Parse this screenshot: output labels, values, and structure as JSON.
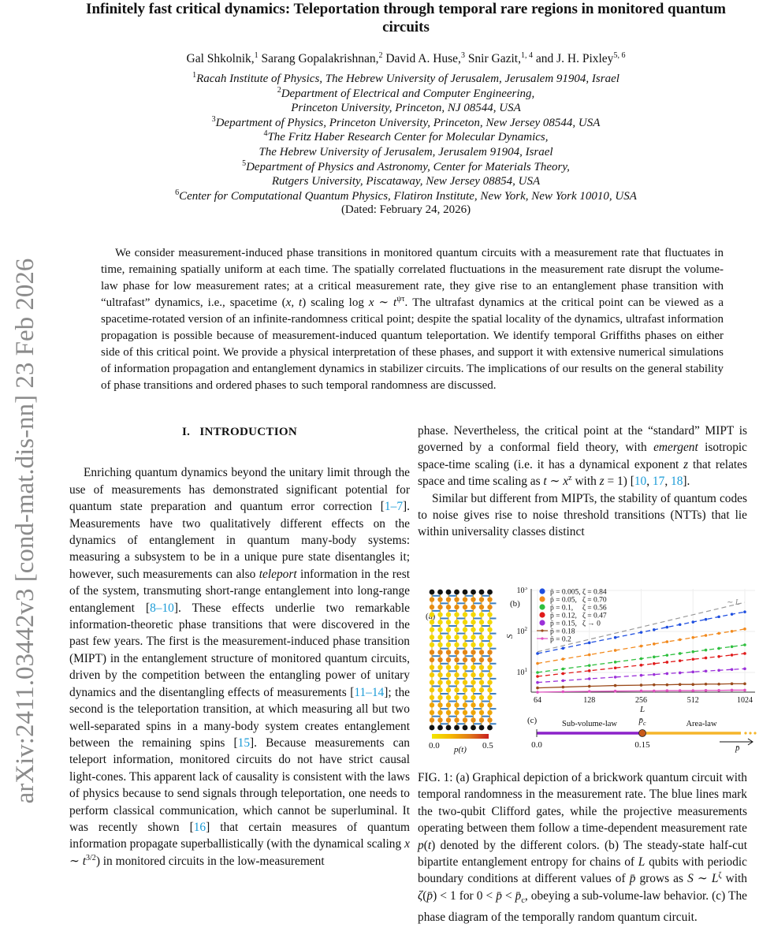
{
  "stamp": "arXiv:2411.03442v3  [cond-mat.dis-nn]  23 Feb 2026",
  "title": "Infinitely fast critical dynamics: Teleportation through temporal rare regions in monitored quantum circuits",
  "authors": [
    {
      "name": "Gal Shkolnik,",
      "sup": "1"
    },
    {
      "name": " Sarang Gopalakrishnan,",
      "sup": "2"
    },
    {
      "name": " David A. Huse,",
      "sup": "3"
    },
    {
      "name": " Snir Gazit,",
      "sup": "1, 4"
    },
    {
      "name": " and J. H. Pixley",
      "sup": "5, 6"
    }
  ],
  "affiliations": [
    {
      "sup": "1",
      "lines": [
        "Racah Institute of Physics, The Hebrew University of Jerusalem, Jerusalem 91904, Israel"
      ]
    },
    {
      "sup": "2",
      "lines": [
        "Department of Electrical and Computer Engineering,",
        "Princeton University, Princeton, NJ 08544, USA"
      ]
    },
    {
      "sup": "3",
      "lines": [
        "Department of Physics, Princeton University, Princeton, New Jersey 08544, USA"
      ]
    },
    {
      "sup": "4",
      "lines": [
        "The Fritz Haber Research Center for Molecular Dynamics,",
        "The Hebrew University of Jerusalem, Jerusalem 91904, Israel"
      ]
    },
    {
      "sup": "5",
      "lines": [
        "Department of Physics and Astronomy, Center for Materials Theory,",
        "Rutgers University, Piscataway, New Jersey 08854, USA"
      ]
    },
    {
      "sup": "6",
      "lines": [
        "Center for Computational Quantum Physics, Flatiron Institute, New York, New York 10010, USA"
      ]
    }
  ],
  "dated": "(Dated: February 24, 2026)",
  "abstract": [
    {
      "t": "We consider measurement-induced phase transitions in monitored quantum circuits with a measurement rate that fluctuates in time, remaining spatially uniform at each time. The spatially correlated fluctuations in the measurement rate disrupt the volume-law phase for low measurement rates; at a critical measurement rate, they give rise to an entanglement phase transition with “ultrafast” dynamics, i.e., spacetime ("
    },
    {
      "m": "x, t"
    },
    {
      "t": ") scaling log "
    },
    {
      "m": "x"
    },
    {
      "t": " ∼ "
    },
    {
      "m": "t"
    },
    {
      "sup": "ψτ"
    },
    {
      "t": ". The ultrafast dynamics at the critical point can be viewed as a spacetime-rotated version of an infinite-randomness critical point; despite the spatial locality of the dynamics, ultrafast information propagation is possible because of measurement-induced quantum teleportation. We identify temporal Griffiths phases on either side of this critical point. We provide a physical interpretation of these phases, and support it with extensive numerical simulations of information propagation and entanglement dynamics in stabilizer circuits. The implications of our results on the general stability of phase transitions and ordered phases to such temporal randomness are discussed."
    }
  ],
  "section_heading": "I.   INTRODUCTION",
  "left_paragraph": [
    {
      "t": "Enriching quantum dynamics beyond the unitary limit through the use of measurements has demonstrated significant potential for quantum state preparation and quantum error correction ["
    },
    {
      "c": "1–7"
    },
    {
      "t": "]. Measurements have two qualitatively different effects on the dynamics of entanglement in quantum many-body systems: measuring a subsystem to be in a unique pure state disentangles it; however, such measurements can also "
    },
    {
      "e": "teleport"
    },
    {
      "t": " information in the rest of the system, transmuting short-range entanglement into long-range entanglement ["
    },
    {
      "c": "8–10"
    },
    {
      "t": "]. These effects underlie two remarkable information-theoretic phase transitions that were discovered in the past few years. The first is the measurement-induced phase transition (MIPT) in the entanglement structure of monitored quantum circuits, driven by the competition between the entangling power of unitary dynamics and the disentangling effects of measurements ["
    },
    {
      "c": "11–14"
    },
    {
      "t": "]; the second is the teleportation transition, at which measuring all but two well-separated spins in a many-body system creates entanglement between the remaining spins ["
    },
    {
      "c": "15"
    },
    {
      "t": "]. Because measurements can teleport information, monitored circuits do not have strict causal light-cones. This apparent lack of causality is consistent with the laws of physics because to send signals through teleportation, one needs to perform classical communication, which cannot be superluminal. It was recently shown ["
    },
    {
      "c": "16"
    },
    {
      "t": "] that certain measures of quantum information propagate superballistically (with the dynamical scaling "
    },
    {
      "m": "x"
    },
    {
      "t": " ∼ "
    },
    {
      "m": "t"
    },
    {
      "sup": "3/2"
    },
    {
      "t": ") in monitored circuits in the low-measurement"
    }
  ],
  "right_paragraphs": [
    [
      {
        "t": "phase. Nevertheless, the critical point at the “standard” MIPT is governed by a conformal field theory, with "
      },
      {
        "e": "emergent"
      },
      {
        "t": " isotropic space-time scaling (i.e. it has a dynamical exponent "
      },
      {
        "m": "z"
      },
      {
        "t": " that relates space and time scaling as "
      },
      {
        "m": "t"
      },
      {
        "t": " ∼ "
      },
      {
        "m": "x"
      },
      {
        "sup": "z"
      },
      {
        "t": " with "
      },
      {
        "m": "z"
      },
      {
        "t": " = 1) ["
      },
      {
        "c": "10"
      },
      {
        "t": ", "
      },
      {
        "c": "17"
      },
      {
        "t": ", "
      },
      {
        "c": "18"
      },
      {
        "t": "]."
      }
    ],
    [
      {
        "t": "Similar but different from MIPTs, the stability of quantum codes to noise gives rise to noise threshold transitions (NTTs) that lie within universality classes distinct"
      }
    ]
  ],
  "caption": [
    {
      "t": "FIG. 1: (a) Graphical depiction of a brickwork quantum circuit with temporal randomness in the measurement rate. The blue lines mark the two-qubit Clifford gates, while the projective measurements operating between them follow a time-dependent measurement rate "
    },
    {
      "m": "p"
    },
    {
      "t": "("
    },
    {
      "m": "t"
    },
    {
      "t": ") denoted by the different colors. (b) The steady-state half-cut bipartite entanglement entropy for chains of "
    },
    {
      "m": "L"
    },
    {
      "t": " qubits with periodic boundary conditions at different values of "
    },
    {
      "m": "p̄"
    },
    {
      "t": " grows as "
    },
    {
      "m": "S"
    },
    {
      "t": " ∼ "
    },
    {
      "m": "L"
    },
    {
      "sup": "ζ"
    },
    {
      "t": " with "
    },
    {
      "m": "ζ"
    },
    {
      "t": "("
    },
    {
      "m": "p̄"
    },
    {
      "t": ") < 1 for 0 < "
    },
    {
      "m": "p̄"
    },
    {
      "t": " < "
    },
    {
      "m": "p̄"
    },
    {
      "sub": "c"
    },
    {
      "t": ", obeying a sub-volume-law behavior. (c) The phase diagram of the temporally random quantum circuit."
    }
  ],
  "colors": {
    "citation": "#1a9bd7",
    "gate": "#3a7fc4",
    "stamp": "#8a8a8a"
  },
  "chart_data": [
    {
      "type": "diagram",
      "panel_label": "(a)",
      "colorbar": {
        "min_label": "0.0",
        "max_label": "0.5",
        "label": "p(t)",
        "colors": [
          "#f2e600",
          "#f5b800",
          "#e07a1a",
          "#c81e1e"
        ]
      },
      "rows_p_t": [
        0,
        0.28,
        0.28,
        0.05,
        0.05,
        0.05,
        0.05,
        0.05,
        0.3,
        0.3,
        0.1,
        0.1,
        0.1,
        0.1,
        0.1,
        0.22,
        0.22,
        0.28,
        0
      ],
      "columns": 8
    },
    {
      "type": "line",
      "panel_label": "(b)",
      "xlabel": "L",
      "ylabel": "S",
      "xscale": "log2",
      "yscale": "log10",
      "xlim": [
        60,
        1100
      ],
      "ylim": [
        3.2,
        1000
      ],
      "xticks": [
        "64",
        "128",
        "256",
        "512",
        "1024"
      ],
      "yticks": [
        "10^1",
        "10^2",
        "10^3"
      ],
      "grid": true,
      "legend_position": "top-left",
      "x": [
        64,
        90,
        128,
        181,
        256,
        304,
        362,
        430,
        512,
        608,
        724,
        861,
        1024
      ],
      "series": [
        {
          "name": "p̄ = 0.005, ζ = 0.84",
          "color": "#1f4fe0",
          "style": "dashed",
          "values": [
            29,
            39,
            53,
            71,
            95,
            110,
            127,
            147,
            170,
            197,
            228,
            263,
            300
          ]
        },
        {
          "name": "p̄ = 0.05,   ζ = 0.70",
          "color": "#f28a1e",
          "style": "dashed",
          "values": [
            16.6,
            21.2,
            27,
            34.6,
            44,
            49.6,
            56,
            63,
            71,
            80,
            90,
            101,
            115
          ]
        },
        {
          "name": "p̄ = 0.1,     ζ = 0.56",
          "color": "#2fbf3f",
          "style": "dashed",
          "values": [
            10,
            12.2,
            14.8,
            17.9,
            21.7,
            23.9,
            26.3,
            29,
            32,
            35.2,
            38.7,
            42.6,
            47
          ]
        },
        {
          "name": "p̄ = 0.12,   ζ = 0.47",
          "color": "#e01b1b",
          "style": "dashed",
          "values": [
            8,
            9.4,
            11,
            12.9,
            15.1,
            16.4,
            17.8,
            19.3,
            21,
            22.6,
            24.5,
            26.6,
            29
          ]
        },
        {
          "name": "p̄ = 0.15,   ζ → 0",
          "color": "#9b30d9",
          "style": "dashed",
          "values": [
            5.7,
            6.3,
            7,
            7.7,
            8.5,
            8.9,
            9.4,
            9.8,
            10.3,
            10.8,
            11.3,
            11.8,
            12.3
          ]
        },
        {
          "name": "p̄ = 0.18",
          "color": "#9a4a1a",
          "style": "solid",
          "values": [
            4.2,
            4.4,
            4.6,
            4.8,
            4.9,
            5.0,
            5.0,
            5.1,
            5.1,
            5.2,
            5.2,
            5.3,
            5.3
          ]
        },
        {
          "name": "p̄ = 0.2",
          "color": "#e050c0",
          "style": "solid",
          "values": [
            3.3,
            3.4,
            3.45,
            3.5,
            3.55,
            3.55,
            3.6,
            3.6,
            3.6,
            3.65,
            3.65,
            3.7,
            3.7
          ]
        }
      ],
      "reference_line": {
        "label": "∼ L",
        "color": "#999999",
        "style": "dashed",
        "x": [
          64,
          1024
        ],
        "values": [
          32,
          512
        ]
      }
    },
    {
      "type": "phase-diagram",
      "panel_label": "(c)",
      "axis_label": "p̄",
      "critical_label": "p̄c",
      "critical_value": 0.15,
      "tick_labels": [
        "0.0",
        "0.15"
      ],
      "phases": [
        {
          "name": "Sub-volume-law",
          "from": 0.0,
          "to": 0.15,
          "color": "#8b22c9"
        },
        {
          "name": "Area-law",
          "from": 0.15,
          "to": null,
          "color": "#f5b52a"
        }
      ],
      "critical_color": "#c85a1a"
    }
  ]
}
